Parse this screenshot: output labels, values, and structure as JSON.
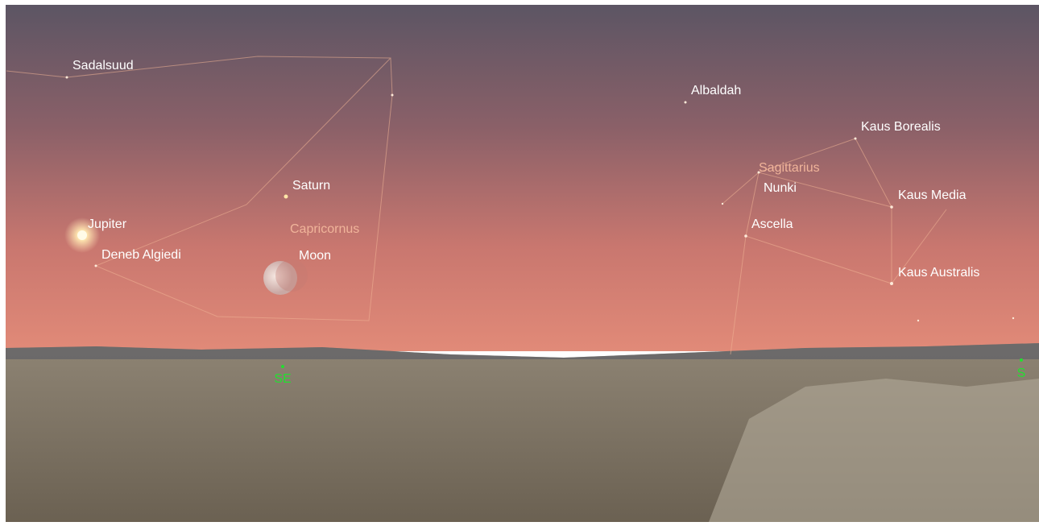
{
  "objects": [
    "Sadalsuud",
    "Albaldah",
    "Kaus Borealis",
    "Nunki",
    "Kaus Media",
    "Ascella",
    "Kaus Australis",
    "Saturn",
    "Jupiter",
    "Deneb Algiedi",
    "Moon"
  ],
  "constellations": [
    "Sagittarius",
    "Capricornus"
  ],
  "directions": [
    "SE",
    "S"
  ]
}
